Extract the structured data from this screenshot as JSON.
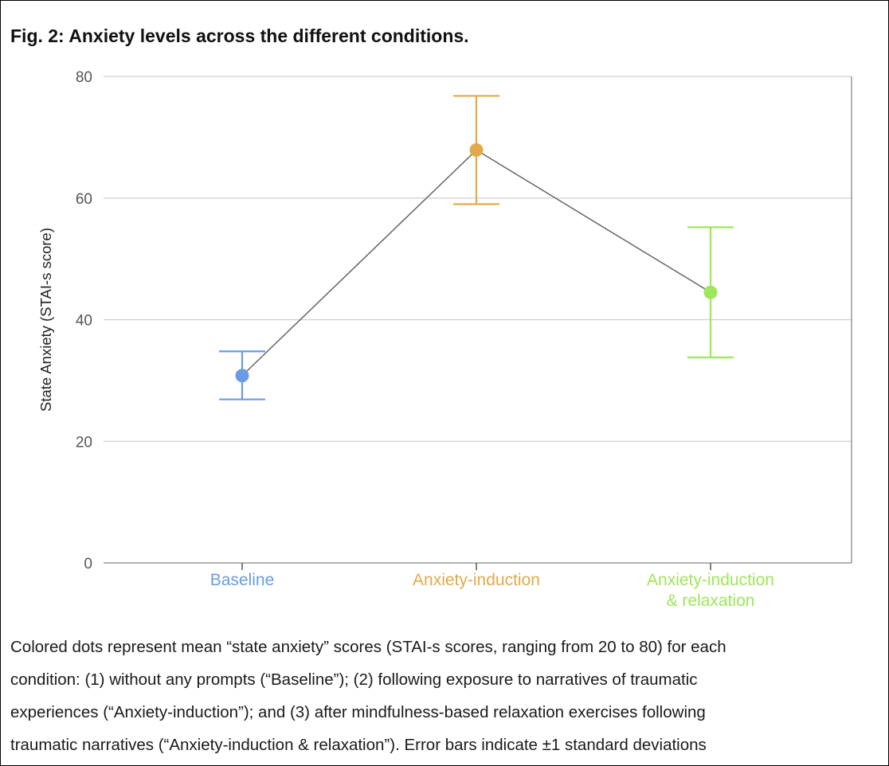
{
  "figure": {
    "title": "Fig. 2: Anxiety levels across the different conditions.",
    "caption_lines": [
      "Colored dots represent mean “state anxiety” scores (STAI-s scores, ranging from 20 to 80) for each",
      "condition: (1) without any prompts (“Baseline”); (2) following exposure to narratives of traumatic",
      "experiences (“Anxiety-induction”); and (3) after mindfulness-based relaxation exercises following",
      "traumatic narratives (“Anxiety-induction & relaxation”). Error bars indicate ±1 standard deviations"
    ]
  },
  "chart_data": {
    "type": "line",
    "title": "",
    "xlabel": "",
    "ylabel": "State Anxiety (STAI-s score)",
    "ylim": [
      0,
      80
    ],
    "yticks": [
      0,
      20,
      40,
      60,
      80
    ],
    "grid": true,
    "categories": [
      {
        "label_lines": [
          "Baseline"
        ],
        "color": "#6a9be4"
      },
      {
        "label_lines": [
          "Anxiety-induction"
        ],
        "color": "#e2a94a"
      },
      {
        "label_lines": [
          "Anxiety-induction",
          "& relaxation"
        ],
        "color": "#9ee65a"
      }
    ],
    "series": [
      {
        "values": [
          30.8,
          67.9,
          44.5
        ],
        "error_low": [
          26.9,
          59.0,
          33.8
        ],
        "error_high": [
          34.8,
          76.8,
          55.2
        ],
        "line_color": "#666666"
      }
    ]
  }
}
